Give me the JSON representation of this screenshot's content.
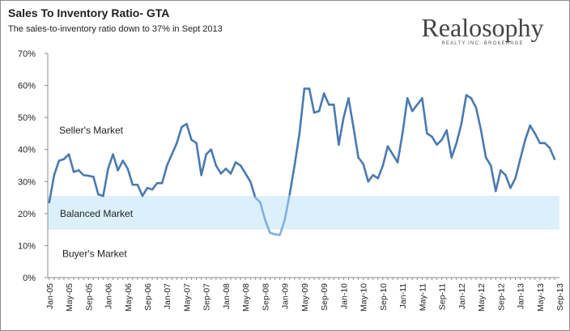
{
  "title": "Sales To Inventory Ratio- GTA",
  "subtitle": "The sales-to-inventory ratio down to 37% in Sept 2013",
  "brand": {
    "name": "Realosophy",
    "tagline": "REALTY INC. BROKERAGE"
  },
  "colors": {
    "line": "#4a7ab0",
    "line_below_band": "#7fb0df",
    "band": "#dbf0fb",
    "axis": "#8c8c8c",
    "text": "#1f1f1f"
  },
  "chart_data": {
    "type": "line",
    "title": "Sales To Inventory Ratio- GTA",
    "subtitle": "The sales-to-inventory ratio down to 37% in Sept 2013",
    "xlabel": "",
    "ylabel": "",
    "ylim": [
      0,
      70
    ],
    "y_ticks": [
      "0%",
      "10%",
      "20%",
      "30%",
      "40%",
      "50%",
      "60%",
      "70%"
    ],
    "grid": false,
    "x_tick_labels": [
      "Jan-05",
      "May-05",
      "Sep-05",
      "Jan-06",
      "May-06",
      "Sep-06",
      "Jan-07",
      "May-07",
      "Sep-07",
      "Jan-08",
      "May-08",
      "Sep-08",
      "Jan-09",
      "May-09",
      "Sep-09",
      "Jan-10",
      "May-10",
      "Sep-10",
      "Jan-11",
      "May-11",
      "Sep-11",
      "Jan-12",
      "May-12",
      "Sep-12",
      "Jan-13",
      "May-13",
      "Sep-13"
    ],
    "band": {
      "from": 15,
      "to": 25.5
    },
    "annotations": [
      "Seller's Market",
      "Balanced Market",
      "Buyer's Market"
    ],
    "annotation_y": [
      46,
      20,
      7.5
    ],
    "series": [
      {
        "x_start": "Jan-05",
        "values": [
          23.5,
          32,
          36.5,
          37,
          38.5,
          33,
          33.5,
          32,
          31.8,
          31.5,
          26,
          25.5,
          34,
          38.5,
          33.5,
          36.5,
          34,
          29,
          29,
          25.5,
          28,
          27.5,
          29.5,
          29.5,
          35,
          38.5,
          42,
          47,
          48,
          43,
          42,
          32,
          38.5,
          40,
          35,
          32.5,
          34,
          32.5,
          36,
          35,
          32.5,
          30,
          25,
          23.5,
          18,
          14,
          13.5,
          13.3,
          18,
          26,
          35,
          45,
          59,
          59,
          51.5,
          52,
          57.5,
          54,
          54,
          41.5,
          50,
          56,
          47,
          37.5,
          35.5,
          30,
          32,
          31,
          35,
          41,
          38.5,
          36,
          45,
          56,
          52,
          54,
          56,
          45,
          44,
          41.5,
          43,
          46,
          37.5,
          42,
          48,
          57,
          56,
          53,
          46,
          37.5,
          35,
          27,
          33.5,
          32,
          28,
          31,
          37,
          43,
          47.5,
          45,
          42,
          42,
          40.5,
          37
        ]
      }
    ]
  }
}
